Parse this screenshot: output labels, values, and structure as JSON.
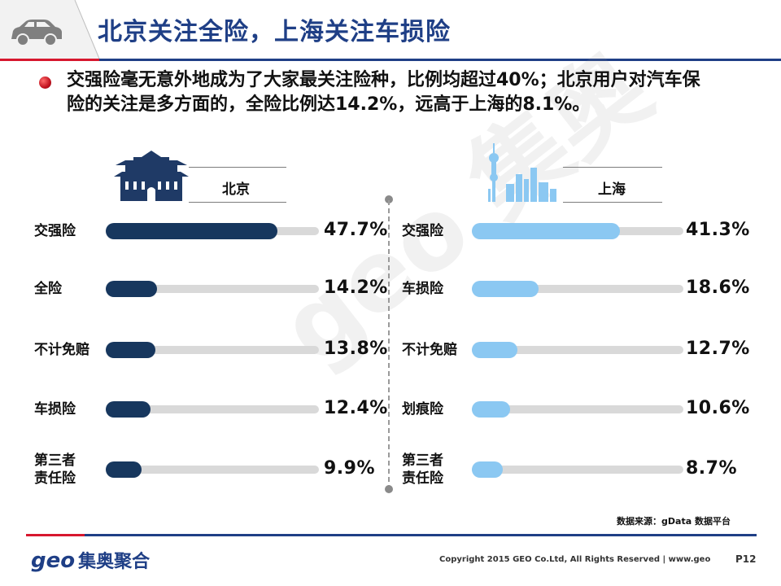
{
  "header": {
    "title": "北京关注全险，上海关注车损险"
  },
  "bullet": {
    "text": "交强险毫无意外地成为了大家最关注险种，比例均超过40%；北京用户对汽车保险的关注是多方面的，全险比例达14.2%，远高于上海的8.1%。"
  },
  "watermark": "geo 集奥",
  "colors": {
    "beijing": "#17375e",
    "shanghai": "#8bc8f2",
    "title": "#1f3f86",
    "accent_red": "#d7172e"
  },
  "chart_data": [
    {
      "type": "bar",
      "orientation": "horizontal",
      "title": "北京",
      "categories": [
        "交强险",
        "全险",
        "不计免赔",
        "车损险",
        "第三者责任险"
      ],
      "values": [
        47.7,
        14.2,
        13.8,
        12.4,
        9.9
      ],
      "value_labels": [
        "47.7%",
        "14.2%",
        "13.8%",
        "12.4%",
        "9.9%"
      ],
      "unit": "%",
      "icon": "temple-icon",
      "color": "#17375e"
    },
    {
      "type": "bar",
      "orientation": "horizontal",
      "title": "上海",
      "categories": [
        "交强险",
        "车损险",
        "不计免赔",
        "划痕险",
        "第三者责任险"
      ],
      "values": [
        41.3,
        18.6,
        12.7,
        10.6,
        8.7
      ],
      "value_labels": [
        "41.3%",
        "18.6%",
        "12.7%",
        "10.6%",
        "8.7%"
      ],
      "unit": "%",
      "icon": "skyline-icon",
      "color": "#8bc8f2"
    }
  ],
  "footer": {
    "source": "数据来源：gData 数据平台",
    "logo_latin": "geo",
    "logo_cn": "集奥聚合",
    "copyright": "Copyright 2015 GEO Co.Ltd, All Rights Reserved  |  www.geo",
    "page": "P12"
  }
}
